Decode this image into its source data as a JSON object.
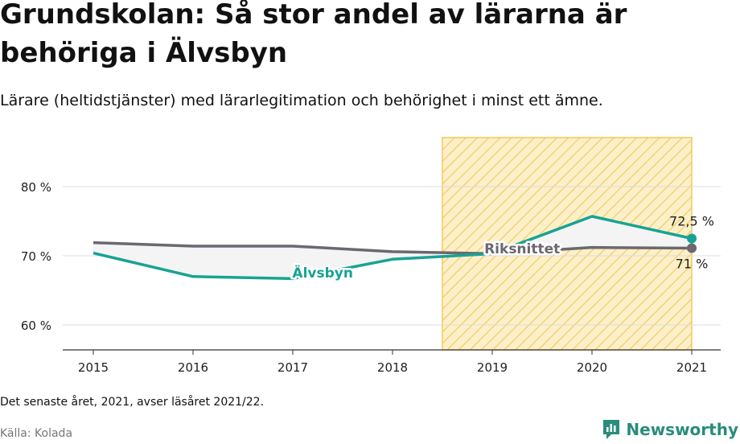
{
  "title": "Grundskolan: Så stor andel av lärarna är behöriga i Älvsbyn",
  "subtitle": "Lärare (heltidstjänster) med lärarlegitimation och behörighet i minst ett ämne.",
  "footnote": "Det senaste året, 2021, avser läsåret 2021/22.",
  "source": "Källa: Kolada",
  "brand": "Newsworthy",
  "colors": {
    "alvsbyn": "#17a394",
    "riksnittet": "#6b6870",
    "highlight_fill": "#fdf0c8",
    "highlight_stroke": "#f0c95a",
    "gap_fill": "#f4f4f4",
    "grid": "#dcdcdc",
    "brand": "#2a8c7c"
  },
  "chart_data": {
    "type": "line",
    "x": [
      2015,
      2016,
      2017,
      2018,
      2019,
      2020,
      2021
    ],
    "xlabels": [
      "2015",
      "2016",
      "2017",
      "2018",
      "2019",
      "2020",
      "2021"
    ],
    "ylim": [
      56,
      87
    ],
    "yticks": [
      60,
      70,
      80
    ],
    "ytick_labels": [
      "60 %",
      "70 %",
      "80 %"
    ],
    "grid": true,
    "highlight_range": [
      2018.5,
      2021
    ],
    "series": [
      {
        "name": "Älvsbyn",
        "values": [
          70.4,
          67.0,
          66.7,
          69.5,
          70.3,
          75.7,
          72.5
        ],
        "end_label": "72,5 %"
      },
      {
        "name": "Riksnittet",
        "values": [
          71.9,
          71.4,
          71.4,
          70.6,
          70.3,
          71.2,
          71.1
        ],
        "end_label": "71 %"
      }
    ]
  }
}
